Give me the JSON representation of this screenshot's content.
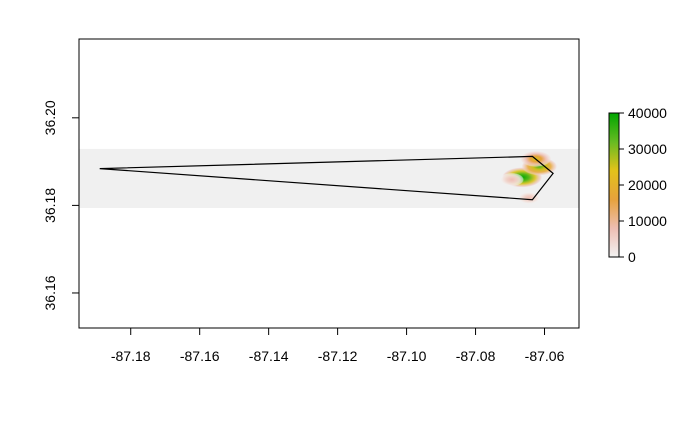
{
  "chart_data": {
    "type": "heatmap",
    "title": "",
    "xlabel": "",
    "ylabel": "",
    "xlim": [
      -87.195,
      -87.05
    ],
    "ylim": [
      36.152,
      36.218
    ],
    "grid": false,
    "x_ticks": [
      -87.18,
      -87.16,
      -87.14,
      -87.12,
      -87.1,
      -87.08,
      -87.06
    ],
    "x_tick_labels": [
      "-87.18",
      "-87.16",
      "-87.14",
      "-87.12",
      "-87.10",
      "-87.08",
      "-87.06"
    ],
    "y_ticks": [
      36.16,
      36.18,
      36.2
    ],
    "y_tick_labels": [
      "36.16",
      "36.18",
      "36.20"
    ],
    "raster_extent": {
      "x": [
        -87.195,
        -87.05
      ],
      "y": [
        36.1794,
        36.1929
      ]
    },
    "polygon": [
      [
        -87.189,
        36.1884
      ],
      [
        -87.0635,
        36.1912
      ],
      [
        -87.0575,
        36.1873
      ],
      [
        -87.0635,
        36.1813
      ],
      [
        -87.189,
        36.1884
      ]
    ],
    "hotspots": [
      {
        "x": -87.0665,
        "y": 36.1864,
        "value": 40000
      },
      {
        "x": -87.0615,
        "y": 36.1889,
        "value": 28000
      },
      {
        "x": -87.0625,
        "y": 36.1906,
        "value": 18000
      },
      {
        "x": -87.0645,
        "y": 36.1817,
        "value": 6000
      },
      {
        "x": -87.0695,
        "y": 36.1859,
        "value": 8000
      }
    ],
    "legend": {
      "placement": "right",
      "min": 0,
      "max": 40000,
      "ticks": [
        0,
        10000,
        20000,
        30000,
        40000
      ],
      "tick_labels": [
        "0",
        "10000",
        "20000",
        "30000",
        "40000"
      ],
      "colors": [
        "#f2f2f2",
        "#eebeb2",
        "#e6a23c",
        "#e3c21a",
        "#66bb22",
        "#00a600"
      ]
    },
    "colors": {
      "background_raster": "#f0f0f0",
      "polygon_stroke": "#000000",
      "axis": "#000000"
    }
  }
}
